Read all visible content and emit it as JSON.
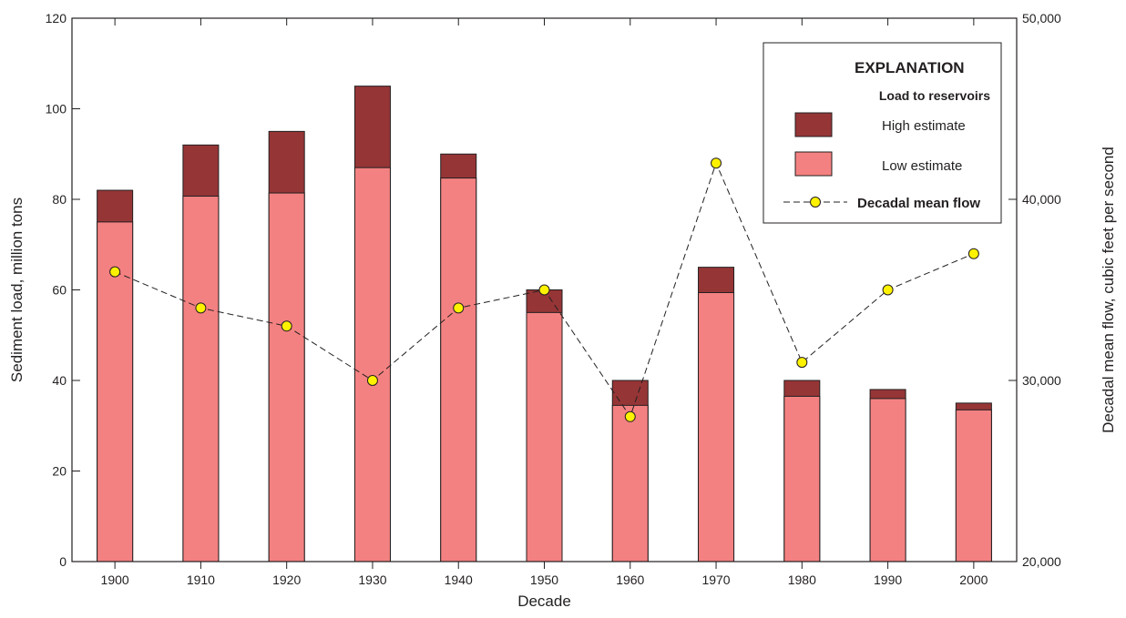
{
  "chart_data": {
    "type": "bar",
    "xlabel": "Decade",
    "ylabel": "Sediment load, million tons",
    "y2label": "Decadal mean flow, cubic feet per second",
    "categories": [
      "1900",
      "1910",
      "1920",
      "1930",
      "1940",
      "1950",
      "1960",
      "1970",
      "1980",
      "1990",
      "2000"
    ],
    "ylim": [
      0,
      120
    ],
    "yticks": [
      "0",
      "20",
      "40",
      "60",
      "80",
      "100",
      "120"
    ],
    "y2lim": [
      20000,
      50000
    ],
    "y2ticks": [
      "20,000",
      "30,000",
      "40,000",
      "50,000"
    ],
    "series": [
      {
        "name": "Low estimate",
        "kind": "bar",
        "color": "#f48181",
        "values": [
          75,
          80.7,
          81.4,
          87,
          84.7,
          55,
          34.5,
          59.4,
          36.5,
          36,
          33.5
        ]
      },
      {
        "name": "High estimate",
        "kind": "bar",
        "color": "#963536",
        "values": [
          82,
          92,
          95,
          105,
          90,
          60,
          40,
          65,
          40,
          38,
          35
        ]
      },
      {
        "name": "Decadal mean flow",
        "kind": "line",
        "axis": "right",
        "marker_color": "#fff200",
        "values": [
          36000,
          34000,
          33000,
          30000,
          34000,
          35000,
          28000,
          42000,
          31000,
          35000,
          37000
        ]
      }
    ],
    "legend": {
      "title": "EXPLANATION",
      "subtitle": "Load to reservoirs",
      "position": "top-right",
      "items": [
        "High estimate",
        "Low estimate",
        "Decadal mean flow"
      ]
    },
    "grid": false
  }
}
